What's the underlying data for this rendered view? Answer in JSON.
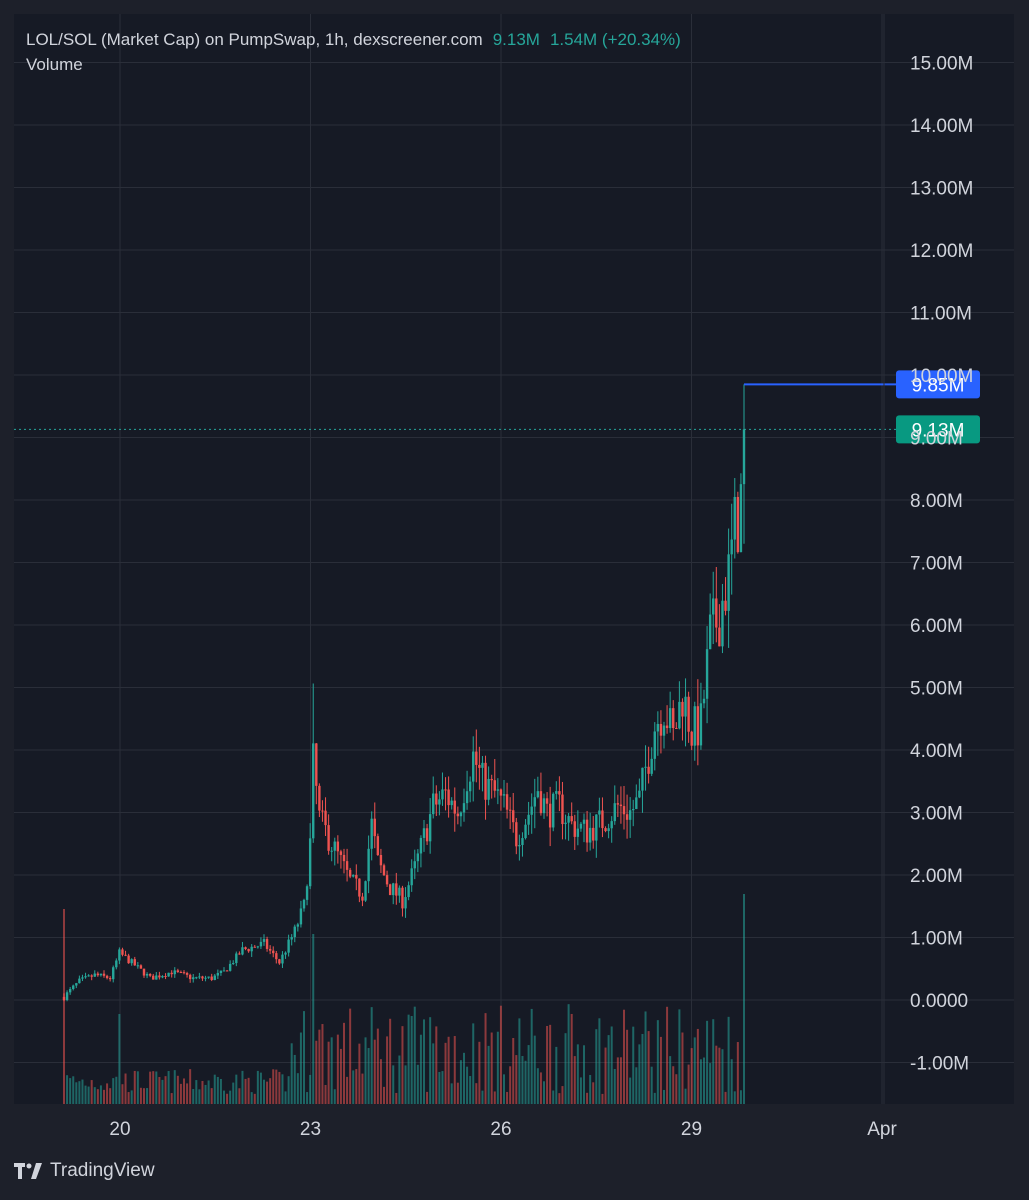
{
  "header": {
    "title": "LOL/SOL (Market Cap) on PumpSwap, 1h, dexscreener.com",
    "last_value": "9.13M",
    "change": "1.54M (+20.34%)",
    "volume_label": "Volume"
  },
  "brand": {
    "name": "TradingView"
  },
  "colors": {
    "background": "#161a25",
    "up": "#26a69a",
    "down": "#ef5350",
    "grid": "#2a2e39",
    "text": "#d1d4dc",
    "current_price_badge": "#089981",
    "high_line": "#2962ff"
  },
  "chart_data": {
    "type": "candlestick",
    "title": "LOL/SOL (Market Cap) on PumpSwap, 1h, dexscreener.com",
    "y_ticks": [
      "-1.00M",
      "0.0000",
      "1.00M",
      "2.00M",
      "3.00M",
      "4.00M",
      "5.00M",
      "6.00M",
      "7.00M",
      "8.00M",
      "9.00M",
      "10.00M",
      "11.00M",
      "12.00M",
      "13.00M",
      "14.00M",
      "15.00M"
    ],
    "x_ticks": [
      "20",
      "23",
      "26",
      "29",
      "Apr"
    ],
    "ylim": [
      -1.65,
      15.5
    ],
    "unit": "M",
    "current_price": 9.13,
    "current_price_label": "9.13M",
    "high_marker": 9.85,
    "high_marker_label": "9.85M",
    "grid": true,
    "ohlc_anchors_M": [
      [
        0,
        0.05
      ],
      [
        5,
        0.3
      ],
      [
        10,
        0.4
      ],
      [
        15,
        0.35
      ],
      [
        18,
        0.75
      ],
      [
        22,
        0.6
      ],
      [
        28,
        0.35
      ],
      [
        35,
        0.45
      ],
      [
        42,
        0.35
      ],
      [
        48,
        0.35
      ],
      [
        52,
        0.45
      ],
      [
        58,
        0.8
      ],
      [
        65,
        0.9
      ],
      [
        70,
        0.6
      ],
      [
        75,
        1.1
      ],
      [
        78,
        1.5
      ],
      [
        80,
        2.5
      ],
      [
        81,
        3.8
      ],
      [
        83,
        2.9
      ],
      [
        86,
        2.6
      ],
      [
        89,
        2.3
      ],
      [
        93,
        1.9
      ],
      [
        97,
        1.7
      ],
      [
        100,
        2.8
      ],
      [
        102,
        2.2
      ],
      [
        106,
        1.8
      ],
      [
        110,
        1.6
      ],
      [
        114,
        2.1
      ],
      [
        117,
        2.6
      ],
      [
        120,
        3.1
      ],
      [
        124,
        3.3
      ],
      [
        128,
        3.0
      ],
      [
        131,
        3.6
      ],
      [
        133,
        3.9
      ],
      [
        136,
        3.5
      ],
      [
        140,
        3.3
      ],
      [
        143,
        3.1
      ],
      [
        147,
        2.6
      ],
      [
        151,
        3.0
      ],
      [
        154,
        3.4
      ],
      [
        157,
        3.0
      ],
      [
        161,
        3.1
      ],
      [
        165,
        2.8
      ],
      [
        170,
        2.7
      ],
      [
        176,
        2.9
      ],
      [
        180,
        3.1
      ],
      [
        184,
        3.0
      ],
      [
        187,
        3.2
      ],
      [
        189,
        3.7
      ],
      [
        192,
        4.4
      ],
      [
        195,
        4.7
      ],
      [
        198,
        4.2
      ],
      [
        201,
        4.9
      ],
      [
        204,
        4.3
      ],
      [
        207,
        4.4
      ],
      [
        210,
        5.8
      ],
      [
        213,
        6.2
      ],
      [
        216,
        6.8
      ],
      [
        218,
        7.5
      ],
      [
        220,
        8.0
      ],
      [
        221,
        9.13
      ]
    ],
    "volume_note": "volume bars drawn in the bottom band of the same pane"
  }
}
